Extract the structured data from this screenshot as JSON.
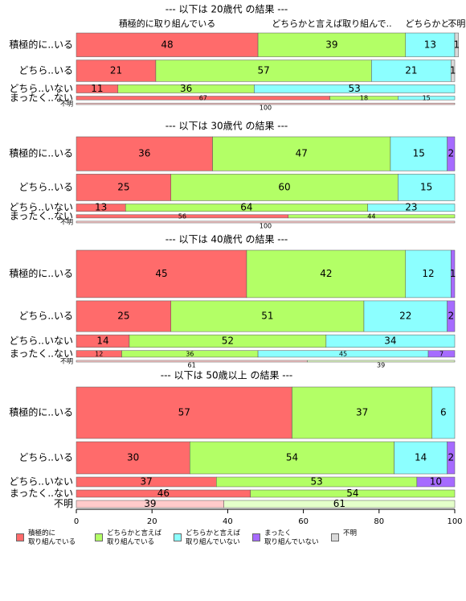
{
  "legend": {
    "series": [
      {
        "name": "積極的に\n取り組んでいる",
        "color": "#ff6b6b"
      },
      {
        "name": "どちらかと言えば\n取り組んでいる",
        "color": "#b3ff66"
      },
      {
        "name": "どちらかと言えば\n取り組んでいない",
        "color": "#8cffff"
      },
      {
        "name": "まったく\n取り組んでいない",
        "color": "#a66bff"
      },
      {
        "name": "不明",
        "color": "#d9d9d9"
      }
    ]
  },
  "chart_data": [
    {
      "type": "bar",
      "title": "--- 以下は 20歳代 の結果 ---",
      "column_labels": [
        "積極的に取り組んでいる",
        "どちらかと言えば取り組んで..",
        "どちらかと..",
        null,
        "不明"
      ],
      "categories": [
        "積極的に..いる",
        "どちら..いる",
        "どちら..いない",
        "まったく..ない",
        "不明"
      ],
      "row_sizes": [
        32,
        29,
        11,
        5,
        2
      ],
      "faded": [
        false,
        false,
        false,
        false,
        true
      ],
      "xlim": [
        0,
        100
      ],
      "series": [
        {
          "values": [
            48,
            21,
            11,
            67,
            100
          ]
        },
        {
          "values": [
            39,
            57,
            36,
            18,
            null
          ]
        },
        {
          "values": [
            13,
            21,
            53,
            15,
            null
          ]
        },
        {
          "values": [
            null,
            null,
            null,
            null,
            null
          ]
        },
        {
          "values": [
            1,
            1,
            null,
            null,
            null
          ]
        }
      ]
    },
    {
      "type": "bar",
      "title": "--- 以下は 30歳代 の結果 ---",
      "categories": [
        "積極的に..いる",
        "どちら..いる",
        "どちら..いない",
        "まったく..ない",
        "不明"
      ],
      "row_sizes": [
        41,
        32,
        9,
        4,
        2
      ],
      "faded": [
        false,
        false,
        false,
        false,
        true
      ],
      "xlim": [
        0,
        100
      ],
      "series": [
        {
          "values": [
            36,
            25,
            13,
            56,
            100
          ]
        },
        {
          "values": [
            47,
            60,
            64,
            44,
            null
          ]
        },
        {
          "values": [
            15,
            15,
            23,
            null,
            null
          ]
        },
        {
          "values": [
            2,
            null,
            null,
            null,
            null
          ]
        },
        {
          "values": [
            null,
            null,
            null,
            null,
            null
          ]
        }
      ]
    },
    {
      "type": "bar",
      "title": "--- 以下は 40歳代 の結果 ---",
      "categories": [
        "積極的に..いる",
        "どちら..いる",
        "どちら..いない",
        "まったく..ない",
        "不明"
      ],
      "row_sizes": [
        57,
        37,
        15,
        8,
        2
      ],
      "faded": [
        false,
        false,
        false,
        false,
        true
      ],
      "xlim": [
        0,
        100
      ],
      "series": [
        {
          "values": [
            45,
            25,
            14,
            12,
            61
          ]
        },
        {
          "values": [
            42,
            51,
            52,
            36,
            39
          ]
        },
        {
          "values": [
            12,
            22,
            34,
            45,
            null
          ]
        },
        {
          "values": [
            1,
            2,
            null,
            7,
            null
          ]
        },
        {
          "values": [
            null,
            null,
            null,
            null,
            null
          ]
        }
      ]
    },
    {
      "type": "bar",
      "title": "--- 以下は 50歳以上 の結果 ---",
      "categories": [
        "積極的に..いる",
        "どちら..いる",
        "どちら..いない",
        "まったく..ない",
        "不明"
      ],
      "row_sizes": [
        64,
        40,
        12,
        9,
        9
      ],
      "faded": [
        false,
        false,
        false,
        false,
        true
      ],
      "xlim": [
        0,
        100
      ],
      "xticks": [
        0,
        20,
        40,
        60,
        80,
        100
      ],
      "series": [
        {
          "values": [
            57,
            30,
            37,
            46,
            39
          ]
        },
        {
          "values": [
            37,
            54,
            53,
            54,
            61
          ]
        },
        {
          "values": [
            6,
            14,
            null,
            null,
            null
          ]
        },
        {
          "values": [
            null,
            2,
            10,
            null,
            null
          ]
        },
        {
          "values": [
            null,
            null,
            null,
            null,
            null
          ]
        }
      ]
    }
  ]
}
